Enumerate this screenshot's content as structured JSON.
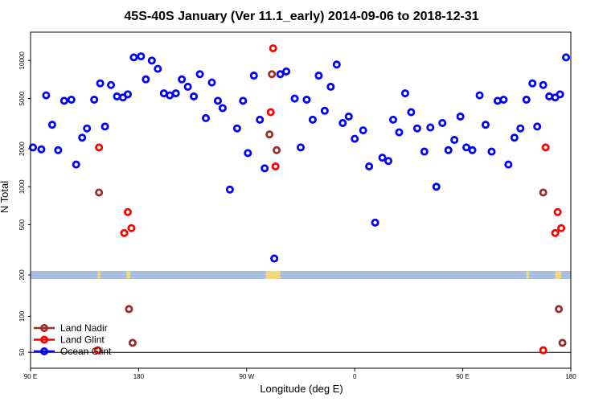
{
  "chart_data": {
    "type": "scatter",
    "title": "45S-40S January (Ver 11.1_early)   2014-09-06 to 2018-12-31",
    "xlabel": "Longitude (deg E)",
    "ylabel": "N Total",
    "x_ticks": [
      {
        "x": 90,
        "label": "90 E"
      },
      {
        "x": 180,
        "label": "180"
      },
      {
        "x": 270,
        "label": "90 W"
      },
      {
        "x": 360,
        "label": "0"
      },
      {
        "x": 450,
        "label": "90 E"
      },
      {
        "x": 540,
        "label": "180"
      }
    ],
    "xlim": [
      90,
      540
    ],
    "upper_panel": {
      "scale": "log",
      "ylim": [
        200,
        14500
      ],
      "y_ticks": [
        200,
        500,
        1000,
        2000,
        5000,
        10000
      ]
    },
    "lower_panel": {
      "scale": "log",
      "ylim": [
        45,
        190
      ],
      "y_ticks": [
        50,
        100
      ]
    },
    "land_mask": {
      "band_color": "#a9bfe0",
      "land_color": "#f5d77a",
      "land_ranges": [
        [
          146,
          148
        ],
        [
          170,
          173
        ],
        [
          286,
          298
        ],
        [
          503,
          505
        ],
        [
          527,
          532
        ]
      ]
    },
    "series": [
      {
        "name": "Land Nadir",
        "color": "#9b2d2d",
        "points": [
          [
            147,
            900
          ],
          [
            172,
            115
          ],
          [
            175,
            60
          ],
          [
            289,
            2600
          ],
          [
            291,
            7800
          ],
          [
            295,
            1950
          ],
          [
            517,
            900
          ],
          [
            530,
            115
          ],
          [
            533,
            60
          ]
        ]
      },
      {
        "name": "Land Glint",
        "color": "#ff0000",
        "points": [
          [
            147,
            2050
          ],
          [
            146,
            52
          ],
          [
            168,
            430
          ],
          [
            171,
            630
          ],
          [
            174,
            470
          ],
          [
            290,
            3900
          ],
          [
            292,
            12500
          ],
          [
            294,
            1450
          ],
          [
            519,
            2050
          ],
          [
            517,
            52
          ],
          [
            527,
            430
          ],
          [
            529,
            630
          ],
          [
            532,
            470
          ]
        ]
      },
      {
        "name": "Ocean Glint",
        "color": "#0000ff",
        "points": [
          [
            92,
            2050
          ],
          [
            99,
            1980
          ],
          [
            103,
            5300
          ],
          [
            108,
            3100
          ],
          [
            113,
            1950
          ],
          [
            118,
            4800
          ],
          [
            124,
            4900
          ],
          [
            128,
            1500
          ],
          [
            133,
            2450
          ],
          [
            137,
            2900
          ],
          [
            143,
            4900
          ],
          [
            148,
            6600
          ],
          [
            152,
            3000
          ],
          [
            157,
            6400
          ],
          [
            162,
            5200
          ],
          [
            167,
            5100
          ],
          [
            171,
            5400
          ],
          [
            176,
            10600
          ],
          [
            182,
            10800
          ],
          [
            186,
            7100
          ],
          [
            191,
            10000
          ],
          [
            196,
            8600
          ],
          [
            201,
            5500
          ],
          [
            206,
            5300
          ],
          [
            211,
            5500
          ],
          [
            216,
            7100
          ],
          [
            221,
            6200
          ],
          [
            226,
            5200
          ],
          [
            231,
            7800
          ],
          [
            236,
            3500
          ],
          [
            241,
            6700
          ],
          [
            246,
            4800
          ],
          [
            250,
            4200
          ],
          [
            256,
            950
          ],
          [
            262,
            2900
          ],
          [
            267,
            4800
          ],
          [
            271,
            1850
          ],
          [
            276,
            7600
          ],
          [
            281,
            3400
          ],
          [
            285,
            1400
          ],
          [
            293,
            270
          ],
          [
            298,
            7800
          ],
          [
            303,
            8200
          ],
          [
            310,
            5000
          ],
          [
            315,
            2050
          ],
          [
            320,
            4900
          ],
          [
            325,
            3400
          ],
          [
            330,
            7600
          ],
          [
            335,
            4000
          ],
          [
            340,
            6200
          ],
          [
            345,
            9300
          ],
          [
            350,
            3200
          ],
          [
            355,
            3600
          ],
          [
            360,
            2400
          ],
          [
            367,
            2800
          ],
          [
            372,
            1450
          ],
          [
            377,
            520
          ],
          [
            383,
            1700
          ],
          [
            388,
            1600
          ],
          [
            392,
            3400
          ],
          [
            397,
            2700
          ],
          [
            402,
            5500
          ],
          [
            407,
            3900
          ],
          [
            412,
            2900
          ],
          [
            418,
            1900
          ],
          [
            423,
            2950
          ],
          [
            428,
            1000
          ],
          [
            433,
            3200
          ],
          [
            438,
            1950
          ],
          [
            443,
            2350
          ],
          [
            448,
            3600
          ],
          [
            453,
            2050
          ],
          [
            458,
            1950
          ],
          [
            464,
            5300
          ],
          [
            469,
            3100
          ],
          [
            474,
            1900
          ],
          [
            479,
            4800
          ],
          [
            484,
            4900
          ],
          [
            488,
            1500
          ],
          [
            493,
            2450
          ],
          [
            498,
            2900
          ],
          [
            503,
            4900
          ],
          [
            508,
            6600
          ],
          [
            512,
            3000
          ],
          [
            517,
            6400
          ],
          [
            522,
            5200
          ],
          [
            527,
            5100
          ],
          [
            531,
            5400
          ],
          [
            536,
            10600
          ]
        ]
      }
    ],
    "legend": {
      "location": "bottom-left",
      "entries": [
        "Land Nadir",
        "Land Glint",
        "Ocean Glint"
      ]
    }
  }
}
